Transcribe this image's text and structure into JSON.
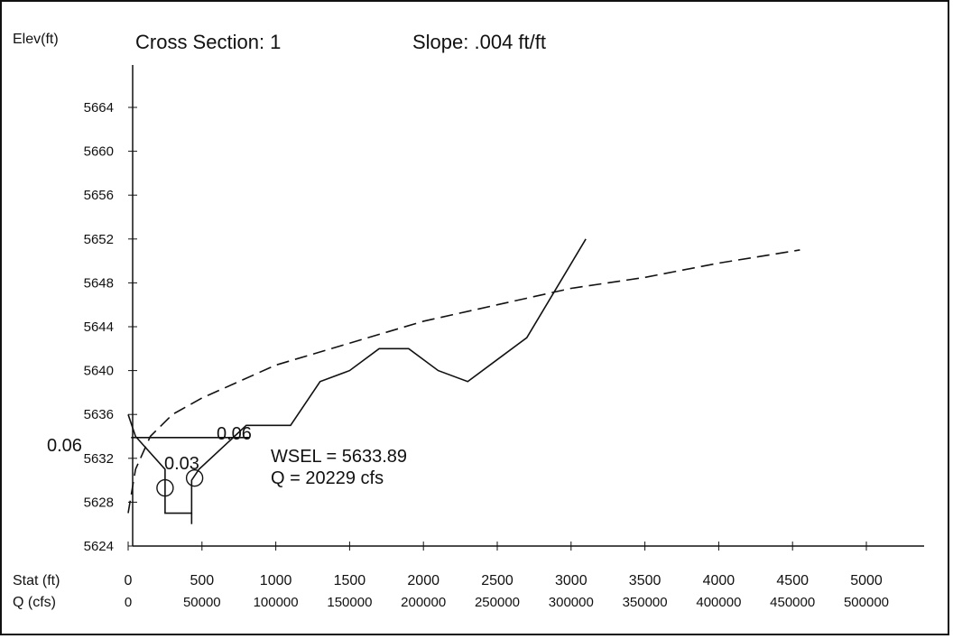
{
  "chart_data": {
    "type": "line",
    "ylabel": "Elev(ft)",
    "title": "Cross Section: 1",
    "slope_label": "Slope: .004 ft/ft",
    "y_ticks": [
      "5624",
      "5628",
      "5632",
      "5636",
      "5640",
      "5644",
      "5648",
      "5652",
      "5656",
      "5660",
      "5664"
    ],
    "ylim": [
      5624,
      5668
    ],
    "x_axis_label": "Stat (ft)",
    "x_ticks": [
      "0",
      "500",
      "1000",
      "1500",
      "2000",
      "2500",
      "3000",
      "3500",
      "4000",
      "4500",
      "5000"
    ],
    "xlim": [
      0,
      5000
    ],
    "q_axis_label": "Q  (cfs)",
    "q_ticks": [
      "0",
      "50000",
      "100000",
      "150000",
      "200000",
      "250000",
      "300000",
      "350000",
      "400000",
      "450000",
      "500000"
    ],
    "cross_section": {
      "x": [
        0,
        50,
        250,
        250,
        430,
        430,
        480,
        800,
        1100,
        1300,
        1500,
        1700,
        1900,
        2100,
        2300,
        2500,
        2700,
        3100
      ],
      "y": [
        5636,
        5634,
        5631,
        5627,
        5627,
        5630,
        5631,
        5635,
        5635,
        5639,
        5640,
        5642,
        5642,
        5640,
        5639,
        5641,
        5643,
        5652
      ]
    },
    "rating_curve": {
      "q": [
        0,
        5000,
        15000,
        30000,
        50000,
        75000,
        100000,
        150000,
        200000,
        250000,
        300000,
        350000,
        400000,
        455000
      ],
      "y": [
        5627,
        5631,
        5634,
        5636,
        5637.5,
        5639,
        5640.5,
        5642.5,
        5644.5,
        5646,
        5647.5,
        5648.5,
        5649.8,
        5651
      ]
    },
    "wsel": 5633.89,
    "wsel_label": "WSEL = 5633.89",
    "q_label": "Q = 20229 cfs",
    "n_values": {
      "left": "0.06",
      "channel": "0.03",
      "right": "0.06"
    },
    "grid": false
  }
}
